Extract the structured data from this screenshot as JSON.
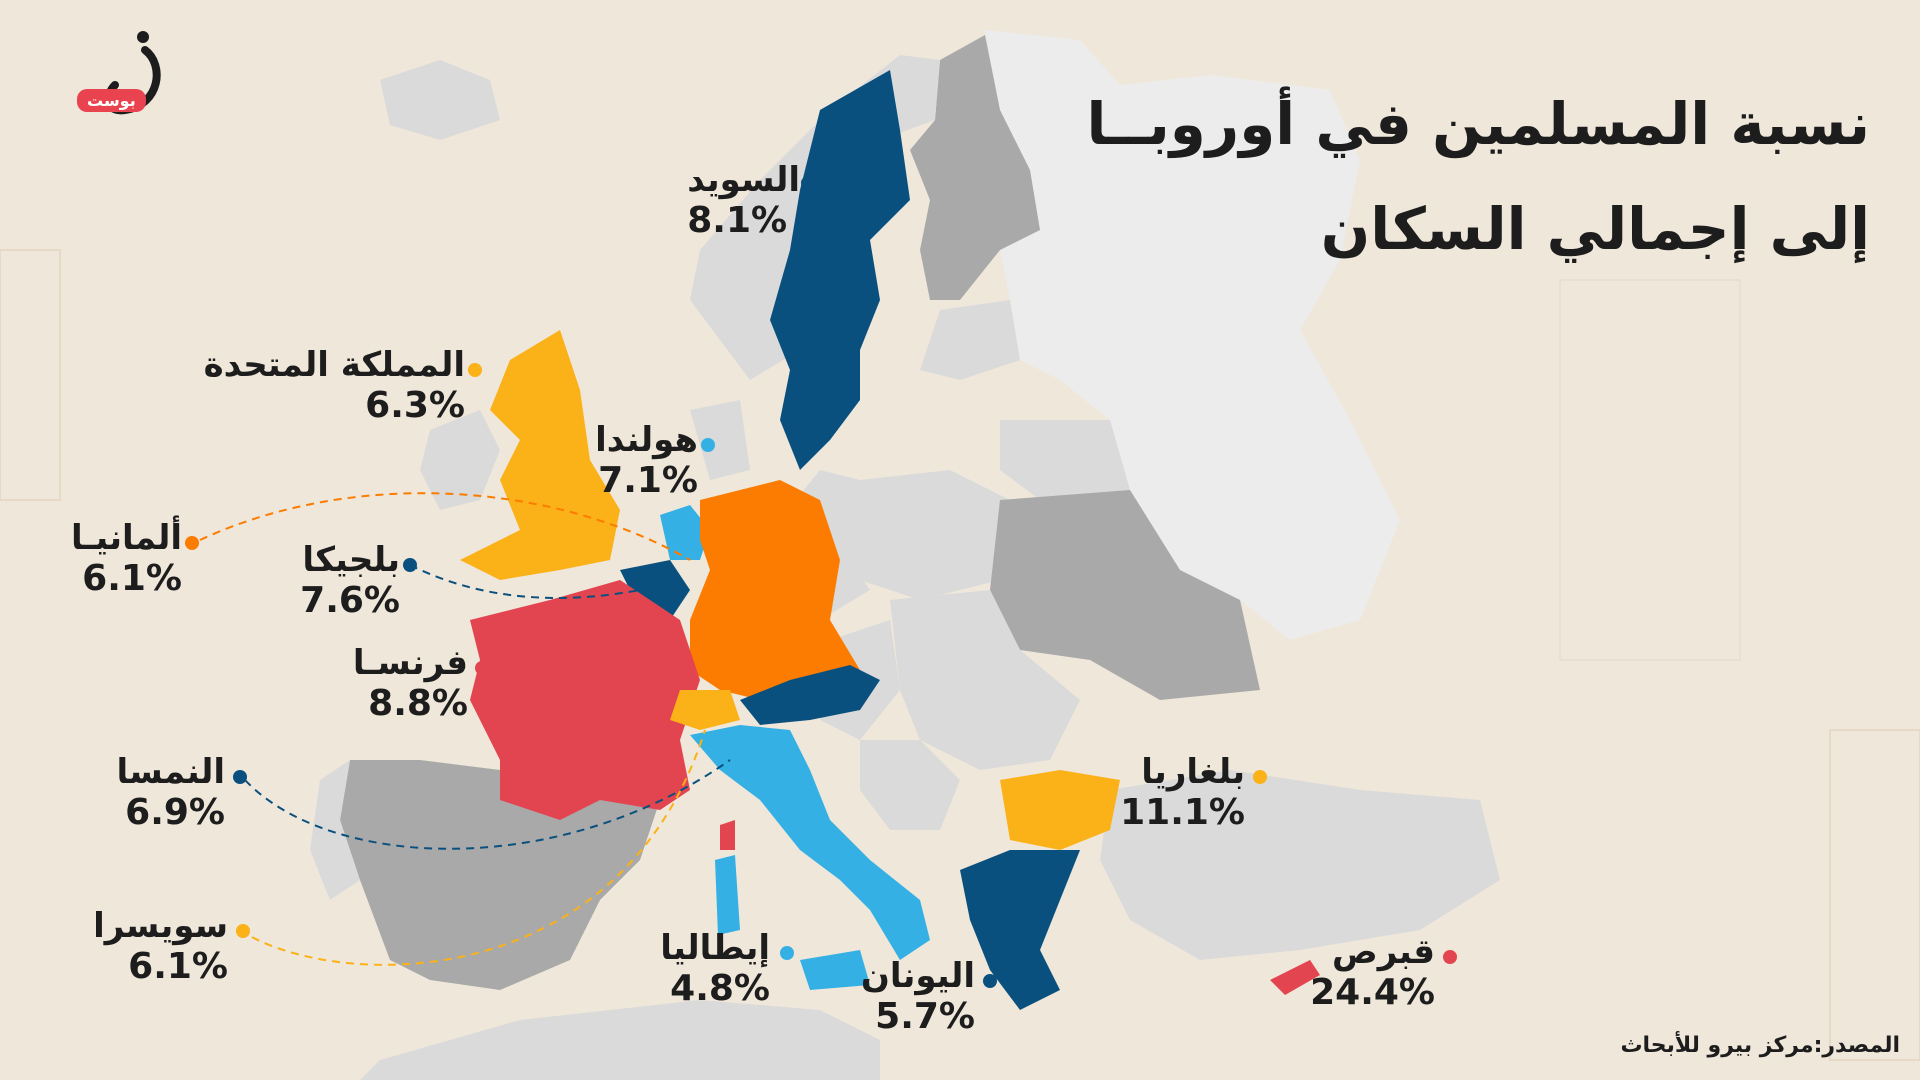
{
  "title": {
    "line1": "نسبة المسلمين في أوروبــا",
    "line2": "إلى إجمالي السكان"
  },
  "source": "المصدر:مركز بيرو للأبحاث",
  "logo": {
    "badge": "بوست",
    "glyph": "ن"
  },
  "colors": {
    "dark_blue": "#0a507e",
    "light_blue": "#35b0e5",
    "orange": "#fb7c00",
    "yellow": "#fbb118",
    "red": "#e34550",
    "grey": "#a9a9a9",
    "light_grey": "#dadada",
    "pale": "#ececec"
  },
  "countries": [
    {
      "key": "sweden",
      "name": "السويد",
      "value": "8.1%",
      "color": "dark_blue"
    },
    {
      "key": "uk",
      "name": "المملكة المتحدة",
      "value": "6.3%",
      "color": "yellow"
    },
    {
      "key": "netherlands",
      "name": "هولندا",
      "value": "7.1%",
      "color": "light_blue"
    },
    {
      "key": "germany",
      "name": "ألمانيـا",
      "value": "6.1%",
      "color": "orange"
    },
    {
      "key": "belgium",
      "name": "بلجيكا",
      "value": "7.6%",
      "color": "dark_blue"
    },
    {
      "key": "france",
      "name": "فرنسـا",
      "value": "8.8%",
      "color": "red"
    },
    {
      "key": "austria",
      "name": "النمسا",
      "value": "6.9%",
      "color": "dark_blue"
    },
    {
      "key": "switzerland",
      "name": "سويسرا",
      "value": "6.1%",
      "color": "yellow"
    },
    {
      "key": "italy",
      "name": "إيطاليا",
      "value": "4.8%",
      "color": "light_blue"
    },
    {
      "key": "greece",
      "name": "اليونان",
      "value": "5.7%",
      "color": "dark_blue"
    },
    {
      "key": "bulgaria",
      "name": "بلغاريا",
      "value": "11.1%",
      "color": "yellow"
    },
    {
      "key": "cyprus",
      "name": "قبرص",
      "value": "24.4%",
      "color": "red"
    }
  ]
}
